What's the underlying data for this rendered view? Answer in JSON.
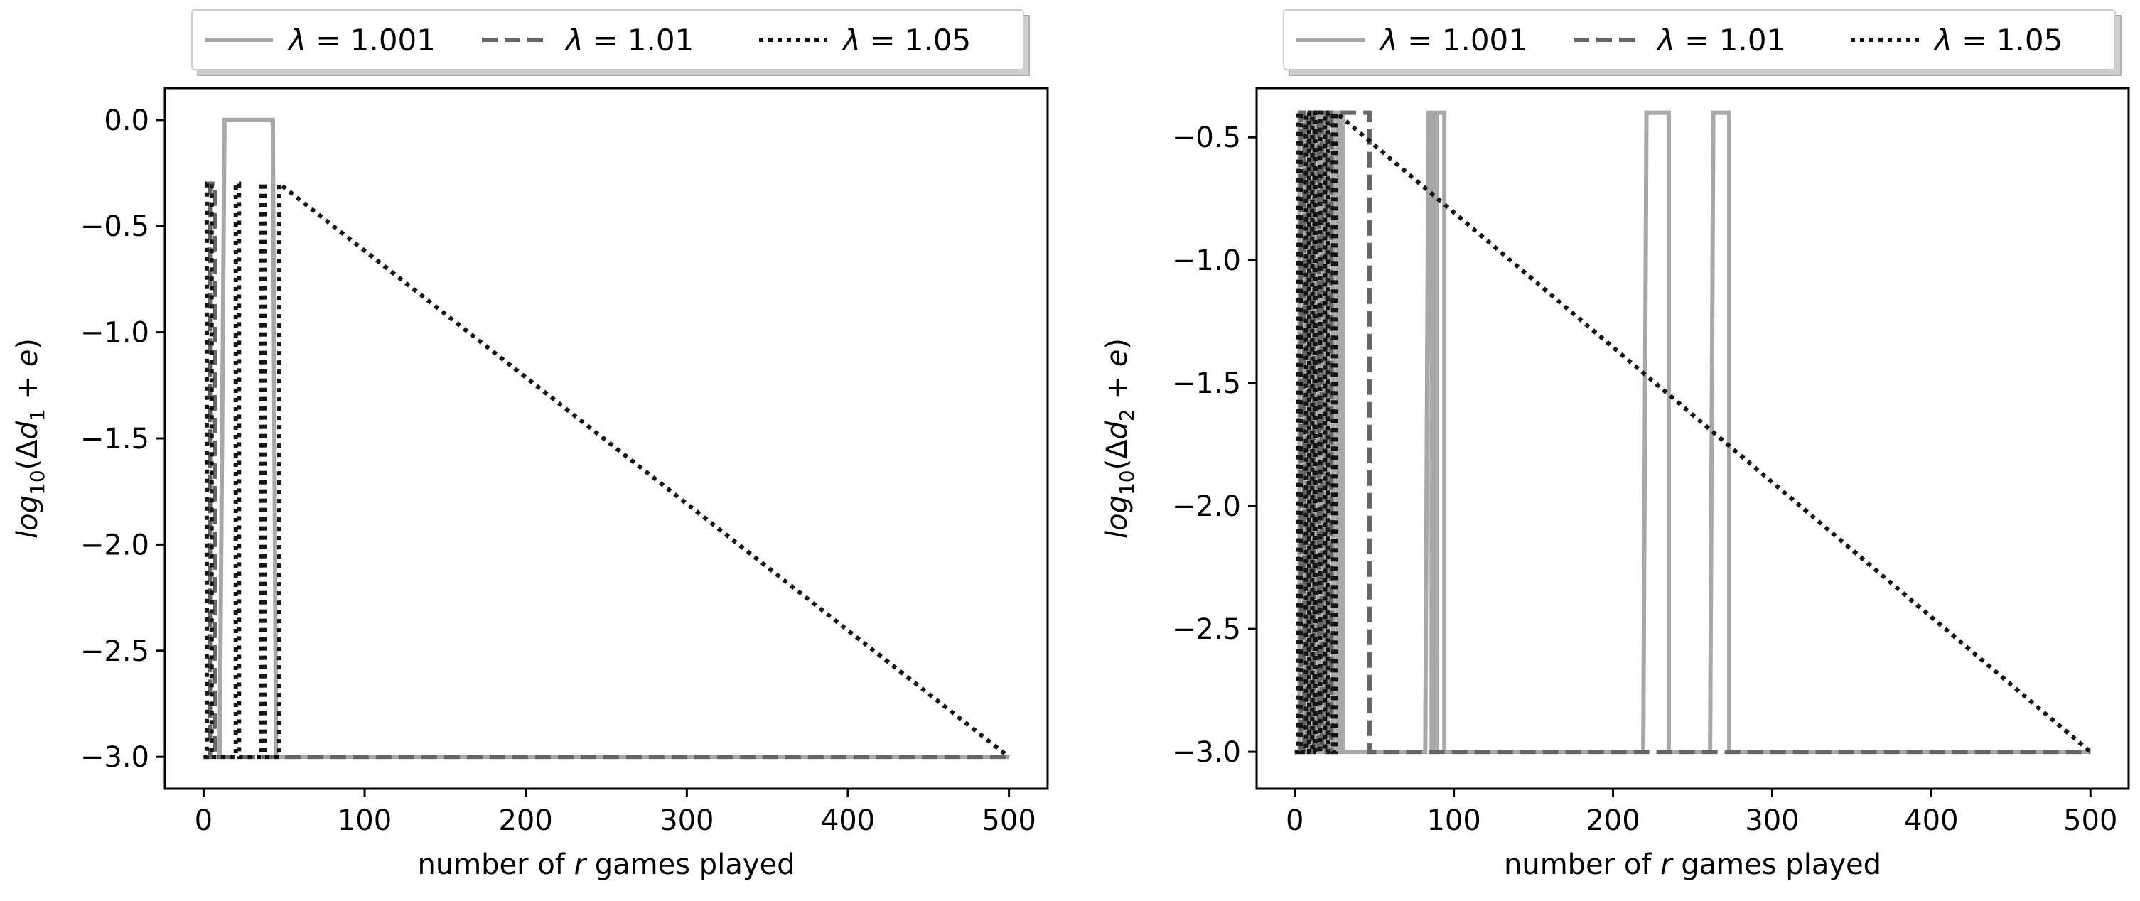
{
  "chart_data": [
    {
      "type": "line",
      "xlabel": "number of r games played",
      "ylabel": "log10(Δd1 + e)",
      "xlim": [
        -24,
        524
      ],
      "ylim": [
        -3.15,
        0.15
      ],
      "xticks": [
        0,
        100,
        200,
        300,
        400,
        500
      ],
      "xtick_labels": [
        "0",
        "100",
        "200",
        "300",
        "400",
        "500"
      ],
      "yticks": [
        0.0,
        -0.5,
        -1.0,
        -1.5,
        -2.0,
        -2.5,
        -3.0
      ],
      "ytick_labels": [
        "0.0",
        "−0.5",
        "−1.0",
        "−1.5",
        "−2.0",
        "−2.5",
        "−3.0"
      ],
      "grid": false,
      "legend_position": "top-center-outside",
      "series": [
        {
          "name": "λ = 1.001",
          "color": "#a8a8aa",
          "dash": "solid",
          "x": [
            0,
            10,
            13,
            13,
            43,
            43,
            45,
            500
          ],
          "y": [
            -3.0,
            -3.0,
            0.0,
            0.0,
            0.0,
            0.0,
            -3.0,
            -3.0
          ]
        },
        {
          "name": "λ = 1.01",
          "color": "#666668",
          "dash": "dashed",
          "x": [
            0,
            4,
            4,
            7,
            7,
            9,
            9,
            500
          ],
          "y": [
            -3.0,
            -3.0,
            -0.3,
            -0.3,
            -3.0,
            -3.0,
            -3.0,
            -3.0
          ]
        },
        {
          "name": "λ = 1.05",
          "color": "#141414",
          "dash": "dotted",
          "x": [
            0,
            2,
            2,
            5,
            5,
            20,
            20,
            22,
            22,
            36,
            36,
            38,
            38,
            47,
            47,
            500
          ],
          "y": [
            -3.0,
            -3.0,
            -0.3,
            -0.3,
            -3.0,
            -3.0,
            -0.3,
            -0.3,
            -3.0,
            -3.0,
            -0.3,
            -0.3,
            -3.0,
            -3.0,
            -0.3,
            -3.0
          ]
        }
      ]
    },
    {
      "type": "line",
      "xlabel": "number of r games played",
      "ylabel": "log10(Δd2 + e)",
      "xlim": [
        -24,
        524
      ],
      "ylim": [
        -3.15,
        -0.3
      ],
      "xticks": [
        0,
        100,
        200,
        300,
        400,
        500
      ],
      "xtick_labels": [
        "0",
        "100",
        "200",
        "300",
        "400",
        "500"
      ],
      "yticks": [
        -0.5,
        -1.0,
        -1.5,
        -2.0,
        -2.5,
        -3.0
      ],
      "ytick_labels": [
        "−0.5",
        "−1.0",
        "−1.5",
        "−2.0",
        "−2.5",
        "−3.0"
      ],
      "grid": false,
      "legend_position": "top-center-outside",
      "series": [
        {
          "name": "λ = 1.001",
          "color": "#a8a8aa",
          "dash": "solid",
          "x": [
            0,
            3,
            3,
            6,
            6,
            9,
            9,
            12,
            12,
            15,
            15,
            18,
            18,
            21,
            21,
            24,
            24,
            27,
            27,
            30,
            30,
            33,
            33,
            82,
            84,
            84,
            86,
            86,
            89,
            89,
            91,
            91,
            94,
            94,
            96,
            96,
            219,
            221,
            221,
            235,
            235,
            261,
            263,
            263,
            273,
            273,
            500
          ],
          "y": [
            -3.0,
            -3.0,
            -0.4,
            -0.4,
            -3.0,
            -3.0,
            -0.4,
            -0.4,
            -3.0,
            -3.0,
            -0.4,
            -0.4,
            -3.0,
            -3.0,
            -0.4,
            -0.4,
            -3.0,
            -3.0,
            -0.4,
            -0.4,
            -3.0,
            -3.0,
            -3.0,
            -3.0,
            -0.4,
            -0.4,
            -0.4,
            -3.0,
            -3.0,
            -0.4,
            -0.4,
            -0.4,
            -0.4,
            -3.0,
            -3.0,
            -3.0,
            -3.0,
            -0.4,
            -0.4,
            -0.4,
            -3.0,
            -3.0,
            -0.4,
            -0.4,
            -0.4,
            -3.0,
            -3.0
          ]
        },
        {
          "name": "λ = 1.01",
          "color": "#666668",
          "dash": "dashed",
          "x": [
            0,
            4,
            4,
            6,
            6,
            8,
            8,
            10,
            10,
            12,
            12,
            15,
            15,
            17,
            17,
            20,
            20,
            23,
            23,
            47,
            47,
            500
          ],
          "y": [
            -3.0,
            -3.0,
            -0.4,
            -0.4,
            -3.0,
            -3.0,
            -0.4,
            -0.4,
            -3.0,
            -3.0,
            -0.4,
            -0.4,
            -3.0,
            -3.0,
            -0.4,
            -0.4,
            -3.0,
            -3.0,
            -0.4,
            -0.4,
            -3.0,
            -3.0
          ]
        },
        {
          "name": "λ = 1.05",
          "color": "#141414",
          "dash": "dotted",
          "x": [
            0,
            2,
            2,
            4,
            4,
            7,
            7,
            9,
            9,
            11,
            11,
            13,
            13,
            16,
            16,
            19,
            19,
            21,
            21,
            24,
            24,
            26,
            26,
            500
          ],
          "y": [
            -3.0,
            -3.0,
            -0.4,
            -0.4,
            -3.0,
            -3.0,
            -0.4,
            -0.4,
            -3.0,
            -3.0,
            -0.4,
            -0.4,
            -3.0,
            -3.0,
            -0.4,
            -0.4,
            -3.0,
            -3.0,
            -0.4,
            -0.4,
            -3.0,
            -3.0,
            -0.4,
            -3.0
          ]
        }
      ]
    }
  ],
  "legend": {
    "entries": [
      {
        "label": "λ = 1.001",
        "color": "#a8a8aa",
        "dash": "solid"
      },
      {
        "label": "λ = 1.01",
        "color": "#666668",
        "dash": "dashed"
      },
      {
        "label": "λ = 1.05",
        "color": "#141414",
        "dash": "dotted"
      }
    ]
  }
}
